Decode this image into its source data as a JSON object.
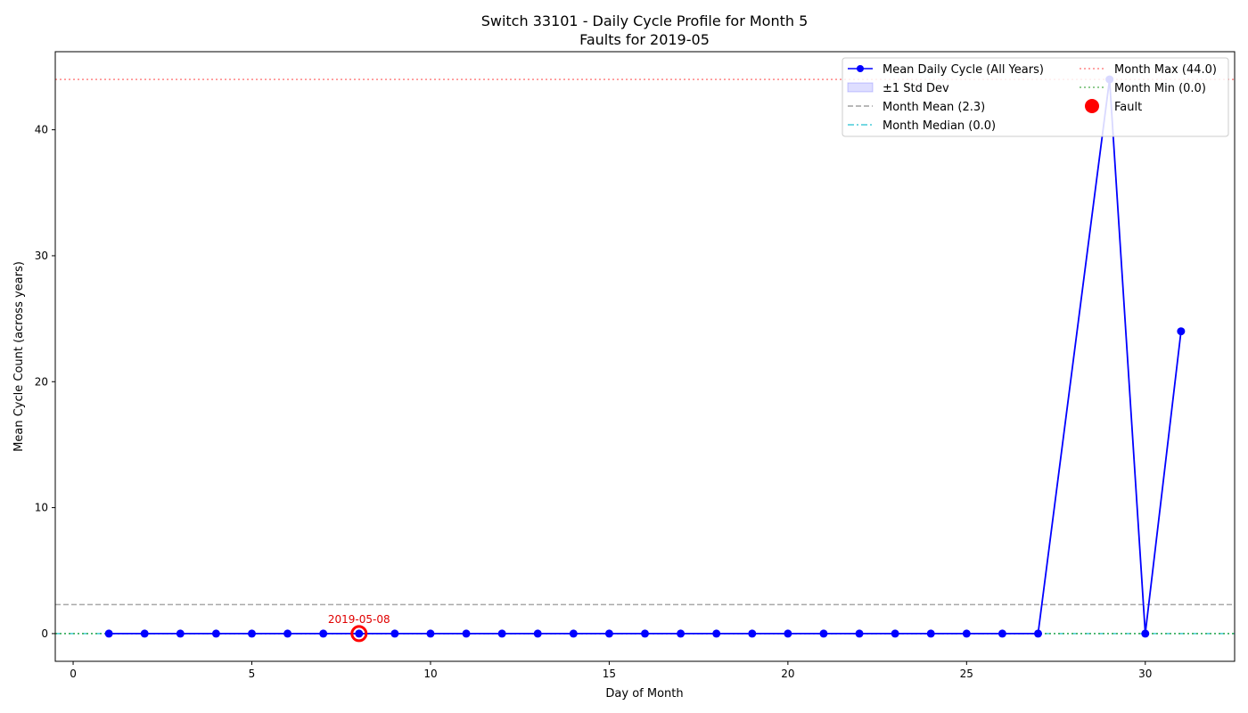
{
  "chart_data": {
    "type": "line",
    "title_line1": "Switch 33101 - Daily Cycle Profile for Month 5",
    "title_line2": "Faults for 2019-05",
    "xlabel": "Day of Month",
    "ylabel": "Mean Cycle Count (across years)",
    "xlim": [
      -0.5,
      32.5
    ],
    "ylim": [
      -2.2,
      46.2
    ],
    "xticks": [
      0,
      5,
      10,
      15,
      20,
      25,
      30
    ],
    "yticks": [
      0,
      10,
      20,
      30,
      40
    ],
    "grid": false,
    "legend_position": "top-right",
    "series": [
      {
        "name": "Mean Daily Cycle (All Years)",
        "color": "#0000ff",
        "x": [
          1,
          2,
          3,
          4,
          5,
          6,
          7,
          8,
          9,
          10,
          11,
          12,
          13,
          14,
          15,
          16,
          17,
          18,
          19,
          20,
          21,
          22,
          23,
          24,
          25,
          26,
          27,
          29,
          30,
          31
        ],
        "y": [
          0,
          0,
          0,
          0,
          0,
          0,
          0,
          0,
          0,
          0,
          0,
          0,
          0,
          0,
          0,
          0,
          0,
          0,
          0,
          0,
          0,
          0,
          0,
          0,
          0,
          0,
          0,
          44,
          0,
          24
        ]
      }
    ],
    "std_band_label": "±1 Std Dev",
    "reference_lines": [
      {
        "name": "Month Mean (2.3)",
        "value": 2.3,
        "color": "#a0a0a0",
        "style": "dashed"
      },
      {
        "name": "Month Median (0.0)",
        "value": 0.0,
        "color": "#17becf",
        "style": "dashdot"
      },
      {
        "name": "Month Max (44.0)",
        "value": 44.0,
        "color": "#ff6666",
        "style": "dotted"
      },
      {
        "name": "Month Min (0.0)",
        "value": 0.0,
        "color": "#2ca02c",
        "style": "dotted"
      }
    ],
    "faults": {
      "name": "Fault",
      "color": "#ff0000",
      "points": [
        {
          "x": 8,
          "y": 0,
          "label": "2019-05-08"
        }
      ]
    }
  }
}
